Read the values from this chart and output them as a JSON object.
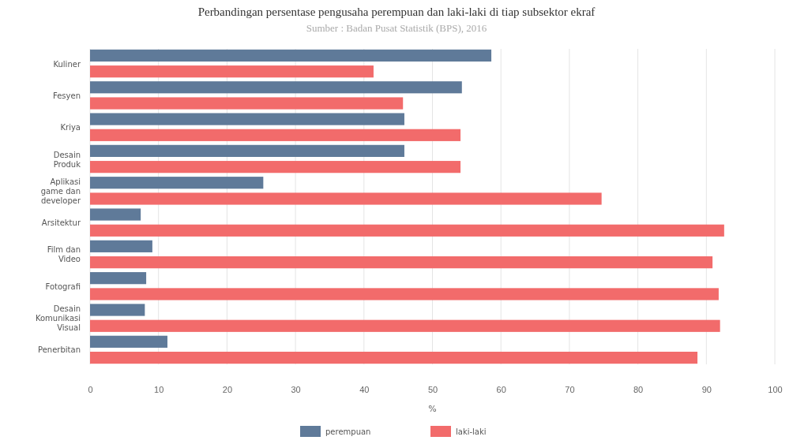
{
  "chart_data": {
    "type": "bar",
    "orientation": "horizontal",
    "title": "Perbandingan persentase pengusaha perempuan dan laki-laki di tiap subsektor ekraf",
    "subtitle": "Sumber : Badan Pusat Statistik (BPS), 2016",
    "xlabel": "%",
    "categories": [
      "Kuliner",
      "Fesyen",
      "Kriya",
      "Desain Produk",
      "Aplikasi game dan developer",
      "Arsitektur",
      "Film dan Video",
      "Fotografi",
      "Desain Komunikasi Visual",
      "Penerbitan"
    ],
    "series": [
      {
        "name": "perempuan",
        "color": "#5f7a99",
        "values": [
          58.6,
          54.3,
          45.9,
          45.9,
          25.3,
          7.4,
          9.1,
          8.2,
          8.0,
          11.3
        ]
      },
      {
        "name": "laki-laki",
        "color": "#f26b6b",
        "values": [
          41.4,
          45.7,
          54.1,
          54.1,
          74.7,
          92.6,
          90.9,
          91.8,
          92.0,
          88.7
        ]
      }
    ],
    "xlim": [
      0,
      100
    ],
    "xticks": [
      0,
      10,
      20,
      30,
      40,
      50,
      60,
      70,
      80,
      90,
      100
    ],
    "grid": "x",
    "legend": "bottom"
  }
}
